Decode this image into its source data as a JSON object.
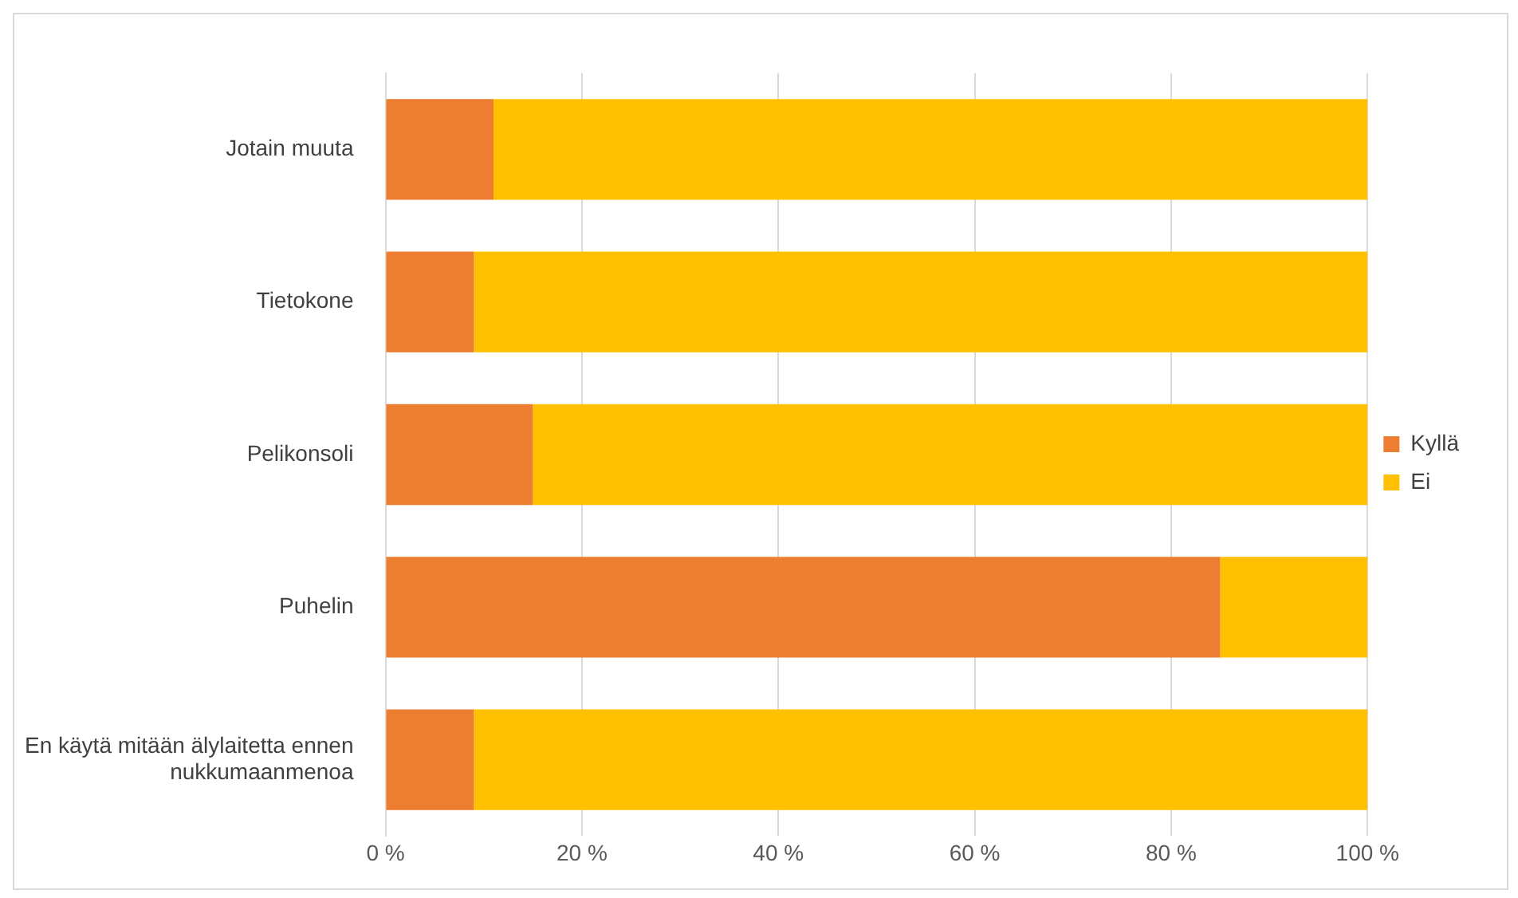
{
  "chart_data": {
    "type": "bar",
    "orientation": "horizontal",
    "stacked": true,
    "categories": [
      "Jotain muuta",
      "Tietokone",
      "Pelikonsoli",
      "Puhelin",
      "En käytä mitään älylaitetta ennen nukkumaanmenoa"
    ],
    "series": [
      {
        "name": "Kyllä",
        "color": "#ed7d31",
        "values": [
          11,
          9,
          15,
          85,
          9
        ]
      },
      {
        "name": "Ei",
        "color": "#ffc000",
        "values": [
          89,
          91,
          85,
          15,
          91
        ]
      }
    ],
    "xlim": [
      0,
      100
    ],
    "xticks": [
      {
        "value": 0,
        "label": "0 %"
      },
      {
        "value": 20,
        "label": "20 %"
      },
      {
        "value": 40,
        "label": "40 %"
      },
      {
        "value": 60,
        "label": "60 %"
      },
      {
        "value": 80,
        "label": "80 %"
      },
      {
        "value": 100,
        "label": "100 %"
      }
    ],
    "grid": "x",
    "legend": "right"
  }
}
